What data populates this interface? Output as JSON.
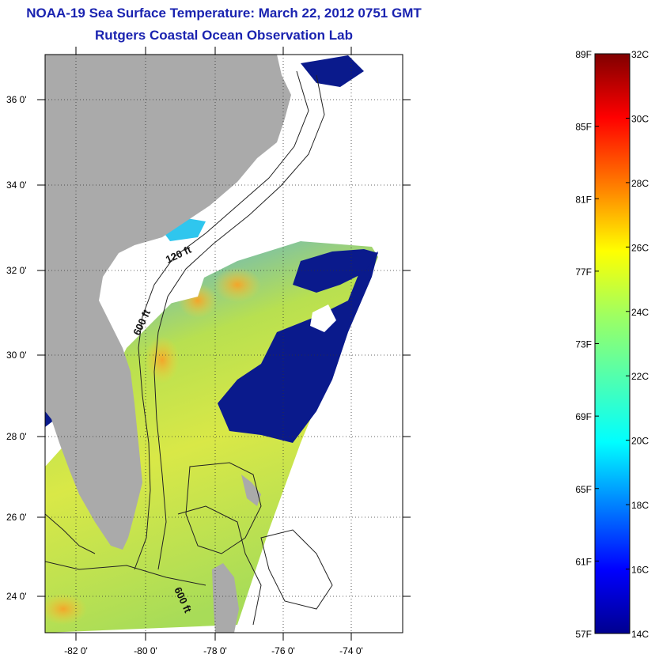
{
  "title": "NOAA-19 Sea Surface Temperature:  March 22, 2012 0751 GMT",
  "subtitle": "Rutgers Coastal Ocean Observation Lab",
  "map": {
    "lon_ticks": [
      "-82 0'",
      "-80 0'",
      "-78 0'",
      "-76 0'",
      "-74 0'"
    ],
    "lat_ticks": [
      "36 0'",
      "34 0'",
      "32 0'",
      "30 0'",
      "28 0'",
      "26 0'",
      "24 0'"
    ],
    "contour_labels": [
      "120 ft",
      "600 ft",
      "600 ft"
    ],
    "colors": {
      "land": "#aaaaaa",
      "cloud": "#ffffff",
      "cold": "#0a1a8c",
      "warm": "#f0b030",
      "mid": "#b8e050"
    }
  },
  "colorbar": {
    "fahrenheit_labels": [
      "89F",
      "85F",
      "81F",
      "77F",
      "73F",
      "69F",
      "65F",
      "61F",
      "57F"
    ],
    "celsius_labels": [
      "32C",
      "30C",
      "28C",
      "26C",
      "24C",
      "22C",
      "20C",
      "18C",
      "16C",
      "14C"
    ],
    "range_c": [
      14,
      32
    ],
    "range_f": [
      57,
      89
    ]
  }
}
